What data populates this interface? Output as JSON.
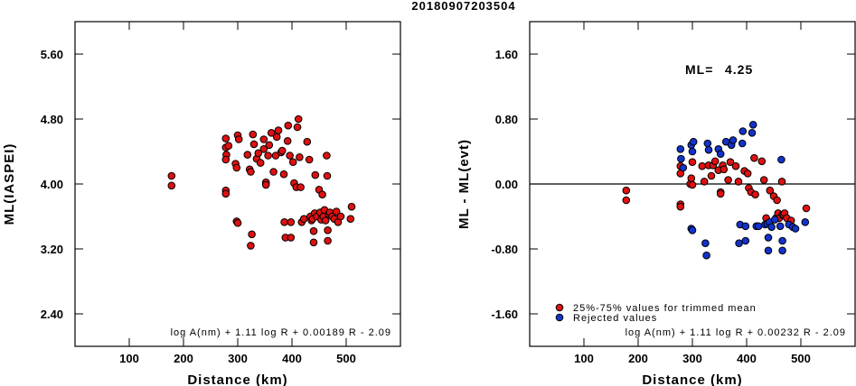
{
  "figure": {
    "title": "20180907203504"
  },
  "chart_data": [
    {
      "type": "scatter",
      "xlabel": "Distance (km)",
      "ylabel": "ML(IASPEI)",
      "xlim": [
        0,
        600
      ],
      "ylim": [
        2.0,
        6.0
      ],
      "xticks": [
        "100",
        "200",
        "300",
        "400",
        "500"
      ],
      "yticks": [
        "2.40",
        "3.20",
        "4.00",
        "4.80",
        "5.60"
      ],
      "annotation": "log A(nm) + 1.11 log R + 0.00189 R - 2.09",
      "series": [
        {
          "color": "#dd1111",
          "points": [
            [
              178,
              4.1
            ],
            [
              178,
              3.98
            ],
            [
              278,
              4.56
            ],
            [
              278,
              4.45
            ],
            [
              279,
              4.36
            ],
            [
              278,
              4.3
            ],
            [
              278,
              3.92
            ],
            [
              278,
              3.88
            ],
            [
              283,
              4.47
            ],
            [
              296,
              4.25
            ],
            [
              298,
              4.2
            ],
            [
              300,
              4.6
            ],
            [
              302,
              4.55
            ],
            [
              298,
              3.54
            ],
            [
              300,
              3.52
            ],
            [
              318,
              4.36
            ],
            [
              322,
              4.18
            ],
            [
              324,
              4.15
            ],
            [
              326,
              3.38
            ],
            [
              324,
              3.24
            ],
            [
              328,
              4.61
            ],
            [
              330,
              4.49
            ],
            [
              335,
              4.31
            ],
            [
              338,
              4.38
            ],
            [
              342,
              4.26
            ],
            [
              348,
              4.43
            ],
            [
              348,
              4.55
            ],
            [
              352,
              4.02
            ],
            [
              352,
              3.99
            ],
            [
              356,
              4.35
            ],
            [
              358,
              4.48
            ],
            [
              362,
              4.63
            ],
            [
              366,
              4.15
            ],
            [
              370,
              4.35
            ],
            [
              372,
              4.58
            ],
            [
              375,
              4.66
            ],
            [
              380,
              4.39
            ],
            [
              382,
              4.41
            ],
            [
              385,
              4.12
            ],
            [
              386,
              3.53
            ],
            [
              388,
              3.34
            ],
            [
              392,
              4.53
            ],
            [
              393,
              4.72
            ],
            [
              396,
              4.35
            ],
            [
              398,
              3.53
            ],
            [
              398,
              3.34
            ],
            [
              402,
              4.27
            ],
            [
              404,
              4.01
            ],
            [
              408,
              3.96
            ],
            [
              410,
              4.7
            ],
            [
              412,
              4.8
            ],
            [
              414,
              4.33
            ],
            [
              416,
              3.96
            ],
            [
              418,
              3.53
            ],
            [
              422,
              3.57
            ],
            [
              428,
              4.52
            ],
            [
              432,
              4.3
            ],
            [
              434,
              3.6
            ],
            [
              436,
              3.55
            ],
            [
              438,
              3.57
            ],
            [
              440,
              3.42
            ],
            [
              440,
              3.28
            ],
            [
              442,
              3.64
            ],
            [
              443,
              4.11
            ],
            [
              446,
              3.6
            ],
            [
              450,
              3.93
            ],
            [
              452,
              3.65
            ],
            [
              454,
              3.56
            ],
            [
              456,
              3.87
            ],
            [
              458,
              3.6
            ],
            [
              460,
              3.68
            ],
            [
              462,
              3.55
            ],
            [
              464,
              4.35
            ],
            [
              465,
              4.1
            ],
            [
              466,
              3.43
            ],
            [
              466,
              3.3
            ],
            [
              468,
              3.63
            ],
            [
              470,
              3.65
            ],
            [
              474,
              3.6
            ],
            [
              478,
              3.57
            ],
            [
              482,
              3.66
            ],
            [
              485,
              3.53
            ],
            [
              490,
              3.6
            ],
            [
              508,
              3.57
            ],
            [
              510,
              3.72
            ]
          ]
        }
      ]
    },
    {
      "type": "scatter",
      "xlabel": "Distance (km)",
      "ylabel": "ML - ML(evt)",
      "xlim": [
        0,
        600
      ],
      "ylim": [
        -2.0,
        2.0
      ],
      "xticks": [
        "100",
        "200",
        "300",
        "400",
        "500"
      ],
      "yticks": [
        "-1.60",
        "-0.80",
        "0.00",
        "0.80",
        "1.60"
      ],
      "reference_line": 0.0,
      "annotation": "log A(nm) + 1.11 log R + 0.00232 R - 2.09",
      "ml_label": "ML=",
      "ml_value": "4.25",
      "legend": {
        "position": "bottom-left",
        "entries": [
          {
            "label": "25%-75% values for trimmed mean",
            "color": "#dd1111"
          },
          {
            "label": "Rejected values",
            "color": "#1133cc"
          }
        ]
      },
      "series": [
        {
          "color": "#dd1111",
          "points": [
            [
              178,
              -0.08
            ],
            [
              178,
              -0.2
            ],
            [
              278,
              0.22
            ],
            [
              278,
              0.13
            ],
            [
              278,
              -0.25
            ],
            [
              278,
              -0.28
            ],
            [
              296,
              0.0
            ],
            [
              298,
              0.07
            ],
            [
              300,
              0.27
            ],
            [
              300,
              -0.01
            ],
            [
              318,
              0.22
            ],
            [
              322,
              0.03
            ],
            [
              330,
              0.23
            ],
            [
              335,
              0.1
            ],
            [
              338,
              0.23
            ],
            [
              342,
              0.28
            ],
            [
              348,
              0.17
            ],
            [
              352,
              -0.1
            ],
            [
              352,
              -0.12
            ],
            [
              356,
              0.23
            ],
            [
              358,
              0.18
            ],
            [
              366,
              0.05
            ],
            [
              370,
              0.27
            ],
            [
              380,
              0.22
            ],
            [
              385,
              0.03
            ],
            [
              396,
              0.16
            ],
            [
              402,
              0.13
            ],
            [
              404,
              -0.05
            ],
            [
              408,
              -0.1
            ],
            [
              414,
              0.32
            ],
            [
              416,
              -0.13
            ],
            [
              428,
              0.28
            ],
            [
              432,
              0.05
            ],
            [
              436,
              -0.42
            ],
            [
              443,
              -0.08
            ],
            [
              450,
              -0.15
            ],
            [
              454,
              -0.42
            ],
            [
              456,
              -0.2
            ],
            [
              458,
              -0.36
            ],
            [
              460,
              -0.42
            ],
            [
              465,
              0.03
            ],
            [
              466,
              -0.38
            ],
            [
              468,
              -0.38
            ],
            [
              470,
              -0.36
            ],
            [
              474,
              -0.42
            ],
            [
              482,
              -0.45
            ],
            [
              510,
              -0.3
            ]
          ]
        },
        {
          "color": "#1133cc",
          "points": [
            [
              278,
              0.43
            ],
            [
              279,
              0.31
            ],
            [
              283,
              0.2
            ],
            [
              298,
              0.48
            ],
            [
              300,
              0.4
            ],
            [
              302,
              0.52
            ],
            [
              298,
              -0.55
            ],
            [
              300,
              -0.57
            ],
            [
              324,
              -0.73
            ],
            [
              326,
              -0.88
            ],
            [
              328,
              0.5
            ],
            [
              330,
              0.42
            ],
            [
              348,
              0.43
            ],
            [
              352,
              0.37
            ],
            [
              362,
              0.52
            ],
            [
              372,
              0.48
            ],
            [
              375,
              0.54
            ],
            [
              386,
              -0.73
            ],
            [
              388,
              -0.5
            ],
            [
              392,
              0.5
            ],
            [
              393,
              0.65
            ],
            [
              398,
              -0.52
            ],
            [
              398,
              -0.7
            ],
            [
              410,
              0.63
            ],
            [
              412,
              0.73
            ],
            [
              418,
              -0.52
            ],
            [
              422,
              -0.52
            ],
            [
              434,
              -0.5
            ],
            [
              438,
              -0.49
            ],
            [
              440,
              -0.66
            ],
            [
              440,
              -0.82
            ],
            [
              442,
              -0.47
            ],
            [
              446,
              -0.53
            ],
            [
              452,
              -0.44
            ],
            [
              462,
              -0.52
            ],
            [
              464,
              0.3
            ],
            [
              466,
              -0.7
            ],
            [
              466,
              -0.82
            ],
            [
              478,
              -0.5
            ],
            [
              485,
              -0.53
            ],
            [
              490,
              -0.55
            ],
            [
              508,
              -0.47
            ]
          ]
        }
      ]
    }
  ]
}
